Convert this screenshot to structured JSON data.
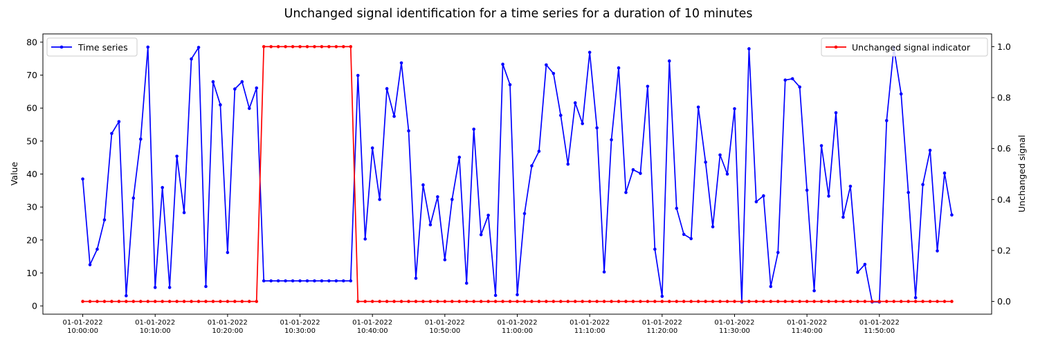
{
  "chart_data": {
    "type": "line",
    "title": "Unchanged signal identification for a time series for a duration of 10 minutes",
    "ylabel": "Value",
    "y2label": "Unchanged signal",
    "ylim": [
      -2.5,
      82.5
    ],
    "y2lim": [
      -0.05,
      1.05
    ],
    "yticks": [
      0,
      10,
      20,
      30,
      40,
      50,
      60,
      70,
      80
    ],
    "y2ticks": [
      0.0,
      0.2,
      0.4,
      0.6,
      0.8,
      1.0
    ],
    "x_start": "2022-01-01T10:00:00",
    "x_step_minutes": 1,
    "xlim_minutes": [
      -5.5,
      125.5
    ],
    "xticks": [
      {
        "minute": 0,
        "date": "01-01-2022",
        "time": "10:00:00"
      },
      {
        "minute": 10,
        "date": "01-01-2022",
        "time": "10:10:00"
      },
      {
        "minute": 20,
        "date": "01-01-2022",
        "time": "10:20:00"
      },
      {
        "minute": 30,
        "date": "01-01-2022",
        "time": "10:30:00"
      },
      {
        "minute": 40,
        "date": "01-01-2022",
        "time": "10:40:00"
      },
      {
        "minute": 50,
        "date": "01-01-2022",
        "time": "10:50:00"
      },
      {
        "minute": 60,
        "date": "01-01-2022",
        "time": "11:00:00"
      },
      {
        "minute": 70,
        "date": "01-01-2022",
        "time": "11:10:00"
      },
      {
        "minute": 80,
        "date": "01-01-2022",
        "time": "11:20:00"
      },
      {
        "minute": 90,
        "date": "01-01-2022",
        "time": "11:30:00"
      },
      {
        "minute": 100,
        "date": "01-01-2022",
        "time": "11:40:00"
      },
      {
        "minute": 110,
        "date": "01-01-2022",
        "time": "11:50:00"
      }
    ],
    "grid": false,
    "series": [
      {
        "name": "Time series",
        "axis": "left",
        "color": "#0000ff",
        "legend": "upper-left",
        "values": [
          38.5,
          12.5,
          17.2,
          26.1,
          52.3,
          55.9,
          3.1,
          32.7,
          50.6,
          78.5,
          5.6,
          35.9,
          5.6,
          45.4,
          28.3,
          74.9,
          78.4,
          5.9,
          68.0,
          61.0,
          16.2,
          65.8,
          68.0,
          59.9,
          66.1,
          7.6,
          7.6,
          7.6,
          7.6,
          7.6,
          7.6,
          7.6,
          7.6,
          7.6,
          7.6,
          7.6,
          7.6,
          7.6,
          69.9,
          20.3,
          47.9,
          32.3,
          65.9,
          57.5,
          73.7,
          53.1,
          8.4,
          36.7,
          24.6,
          33.1,
          14.0,
          32.3,
          45.1,
          6.9,
          53.6,
          21.6,
          27.5,
          3.2,
          73.3,
          67.1,
          3.4,
          28.0,
          42.5,
          46.9,
          73.1,
          70.5,
          57.8,
          43.0,
          61.6,
          55.3,
          76.9,
          54.0,
          10.3,
          50.4,
          72.2,
          34.4,
          41.3,
          40.2,
          66.6,
          17.2,
          2.9,
          74.3,
          29.6,
          21.7,
          20.4,
          60.3,
          43.6,
          24.0,
          45.8,
          40.0,
          59.8,
          1.2,
          78.0,
          31.6,
          33.4,
          5.9,
          16.2,
          68.5,
          68.9,
          66.4,
          35.1,
          4.6,
          48.6,
          33.3,
          58.6,
          26.9,
          36.3,
          10.2,
          12.6,
          1.2,
          1.2,
          56.2,
          78.3,
          64.3,
          34.4,
          2.5,
          36.8,
          47.2,
          16.7,
          40.3,
          27.6
        ]
      },
      {
        "name": "Unchanged signal indicator",
        "axis": "right",
        "color": "#ff0000",
        "legend": "upper-right",
        "on_start_minute": 25,
        "on_end_minute": 37,
        "count": 121
      }
    ]
  }
}
